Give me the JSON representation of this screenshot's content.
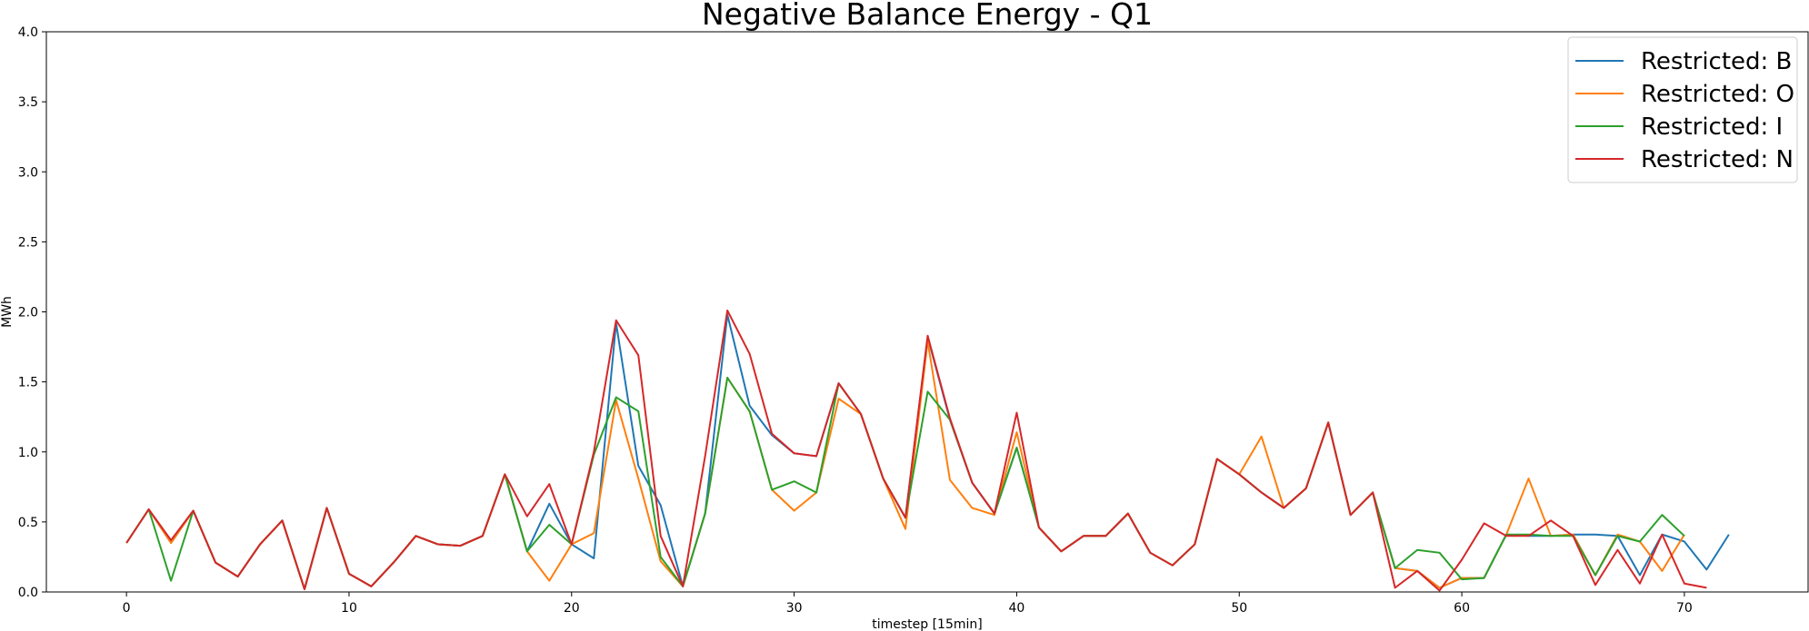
{
  "chart_data": {
    "type": "line",
    "title": "Negative Balance Energy - Q1",
    "xlabel": "timestep [15min]",
    "ylabel": "MWh",
    "xlim": [
      -3.6,
      75.6
    ],
    "ylim": [
      0,
      4.0
    ],
    "xticks": [
      0,
      10,
      20,
      30,
      40,
      50,
      60,
      70
    ],
    "yticks": [
      0.0,
      0.5,
      1.0,
      1.5,
      2.0,
      2.5,
      3.0,
      3.5,
      4.0
    ],
    "ytick_labels": [
      "0.0",
      "0.5",
      "1.0",
      "1.5",
      "2.0",
      "2.5",
      "3.0",
      "3.5",
      "4.0"
    ],
    "grid": false,
    "legend_position": "top-right",
    "series": [
      {
        "name": "Restricted: B",
        "color": "#1f77b4",
        "values": [
          0.35,
          0.59,
          0.35,
          0.58,
          0.21,
          0.11,
          0.34,
          0.51,
          0.02,
          0.6,
          0.13,
          0.04,
          0.21,
          0.4,
          0.34,
          0.33,
          0.4,
          0.84,
          0.29,
          0.63,
          0.34,
          0.24,
          1.92,
          0.9,
          0.62,
          0.04,
          0.56,
          1.98,
          1.33,
          1.12,
          0.99,
          0.97,
          1.49,
          1.27,
          0.81,
          0.53,
          1.82,
          1.23,
          0.78,
          0.56,
          1.03,
          0.46,
          0.29,
          0.4,
          0.4,
          0.56,
          0.28,
          0.19,
          0.34,
          0.95,
          0.84,
          0.71,
          0.6,
          0.74,
          1.21,
          0.55,
          0.71,
          0.17,
          0.15,
          0.03,
          0.1,
          0.1,
          0.41,
          0.4,
          0.4,
          0.41,
          0.41,
          0.4,
          0.12,
          0.41,
          0.36,
          0.16,
          0.41
        ]
      },
      {
        "name": "Restricted: O",
        "color": "#ff7f0e",
        "values": [
          0.35,
          0.59,
          0.35,
          0.58,
          0.21,
          0.11,
          0.34,
          0.51,
          0.02,
          0.6,
          0.13,
          0.04,
          0.21,
          0.4,
          0.34,
          0.33,
          0.4,
          0.84,
          0.29,
          0.08,
          0.34,
          0.42,
          1.37,
          0.81,
          0.22,
          0.04,
          0.56,
          1.53,
          1.29,
          0.73,
          0.58,
          0.71,
          1.38,
          1.27,
          0.81,
          0.45,
          1.79,
          0.8,
          0.6,
          0.55,
          1.14,
          0.46,
          0.29,
          0.4,
          0.4,
          0.56,
          0.28,
          0.19,
          0.34,
          0.95,
          0.84,
          1.11,
          0.6,
          0.74,
          1.21,
          0.55,
          0.71,
          0.17,
          0.15,
          0.03,
          0.1,
          0.1,
          0.41,
          0.81,
          0.4,
          0.41,
          0.12,
          0.41,
          0.36,
          0.15,
          0.41
        ]
      },
      {
        "name": "Restricted: I",
        "color": "#2ca02c",
        "values": [
          0.35,
          0.59,
          0.08,
          0.58,
          0.21,
          0.11,
          0.34,
          0.51,
          0.02,
          0.6,
          0.13,
          0.04,
          0.21,
          0.4,
          0.34,
          0.33,
          0.4,
          0.84,
          0.29,
          0.48,
          0.34,
          0.98,
          1.39,
          1.29,
          0.25,
          0.04,
          0.56,
          1.53,
          1.29,
          0.73,
          0.79,
          0.71,
          1.49,
          1.27,
          0.81,
          0.53,
          1.43,
          1.23,
          0.78,
          0.56,
          1.03,
          0.46,
          0.29,
          0.4,
          0.4,
          0.56,
          0.28,
          0.19,
          0.34,
          0.95,
          0.84,
          0.71,
          0.6,
          0.74,
          1.21,
          0.55,
          0.71,
          0.17,
          0.3,
          0.28,
          0.09,
          0.1,
          0.41,
          0.41,
          0.4,
          0.4,
          0.12,
          0.4,
          0.36,
          0.55,
          0.4
        ]
      },
      {
        "name": "Restricted: N",
        "color": "#d62728",
        "values": [
          0.35,
          0.59,
          0.37,
          0.58,
          0.21,
          0.11,
          0.34,
          0.51,
          0.02,
          0.6,
          0.13,
          0.04,
          0.21,
          0.4,
          0.34,
          0.33,
          0.4,
          0.84,
          0.54,
          0.77,
          0.34,
          1.0,
          1.94,
          1.69,
          0.4,
          0.04,
          0.97,
          2.01,
          1.7,
          1.13,
          0.99,
          0.97,
          1.49,
          1.27,
          0.81,
          0.53,
          1.83,
          1.24,
          0.78,
          0.56,
          1.28,
          0.46,
          0.29,
          0.4,
          0.4,
          0.56,
          0.28,
          0.19,
          0.34,
          0.95,
          0.84,
          0.71,
          0.6,
          0.74,
          1.21,
          0.55,
          0.71,
          0.03,
          0.15,
          0.01,
          0.23,
          0.49,
          0.4,
          0.4,
          0.51,
          0.4,
          0.05,
          0.3,
          0.06,
          0.41,
          0.06,
          0.03
        ]
      }
    ]
  }
}
